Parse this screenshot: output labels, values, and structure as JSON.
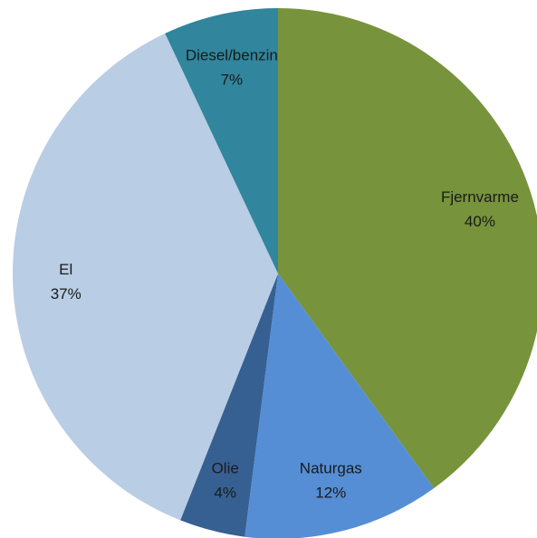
{
  "chart_data": {
    "type": "pie",
    "categories": [
      "Fjernvarme",
      "Naturgas",
      "Olie",
      "El",
      "Diesel/benzin"
    ],
    "values": [
      40,
      12,
      4,
      37,
      7
    ],
    "value_labels": [
      "40%",
      "12%",
      "4%",
      "37%",
      "7%"
    ],
    "colors": [
      "#77933c",
      "#558ed5",
      "#376092",
      "#b9cde5",
      "#31859c"
    ]
  }
}
